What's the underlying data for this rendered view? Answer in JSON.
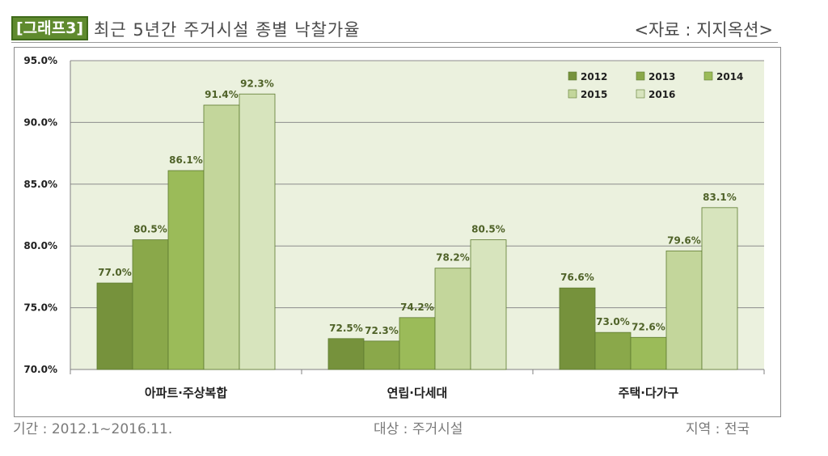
{
  "header": {
    "graph_tag": "[그래프3]",
    "title": "최근 5년간 주거시설 종별 낙찰가율",
    "source": "<자료 : 지지옥션>"
  },
  "footer": {
    "period": "기간 : 2012.1~2016.11.",
    "target": "대상 : 주거시설",
    "region": "지역 : 전국"
  },
  "chart_data": {
    "type": "bar",
    "title": "최근 5년간 주거시설 종별 낙찰가율",
    "categories": [
      "아파트·주상복합",
      "연립·다세대",
      "주택·다가구"
    ],
    "series": [
      {
        "name": "2012",
        "values": [
          77.0,
          72.5,
          76.6
        ],
        "color": "#76923c"
      },
      {
        "name": "2013",
        "values": [
          80.5,
          72.3,
          73.0
        ],
        "color": "#8aa84a"
      },
      {
        "name": "2014",
        "values": [
          86.1,
          74.2,
          72.6
        ],
        "color": "#9bbb59"
      },
      {
        "name": "2015",
        "values": [
          91.4,
          78.2,
          79.6
        ],
        "color": "#c3d69b"
      },
      {
        "name": "2016",
        "values": [
          92.3,
          80.5,
          83.1
        ],
        "color": "#d7e4bd"
      }
    ],
    "ylim": [
      70.0,
      95.0
    ],
    "yticks": [
      "70.0%",
      "75.0%",
      "80.0%",
      "85.0%",
      "90.0%",
      "95.0%"
    ],
    "ytick_values": [
      70,
      75,
      80,
      85,
      90,
      95
    ],
    "grid": true,
    "legend_position": "top-right",
    "value_label_color": "#4f6228",
    "plot_background": "#ebf1de"
  }
}
